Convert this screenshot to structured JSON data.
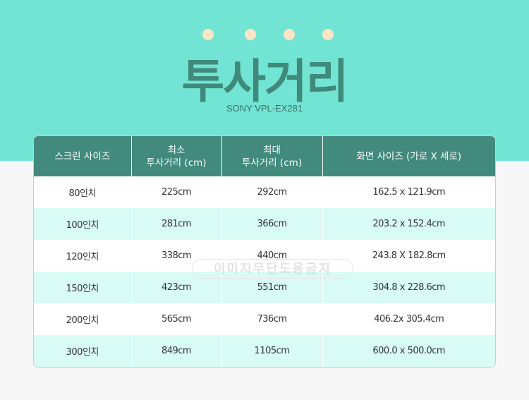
{
  "header": {
    "title": "투사거리",
    "subtitle": "SONY VPL-EX281"
  },
  "colors": {
    "top_bg": "#72e4d4",
    "header_bg": "#418a7d",
    "alt_row": "#d8fcf5",
    "dots": "#fde4c4"
  },
  "table": {
    "columns": [
      "스크린 사이즈",
      "최소\n투사거리 (cm)",
      "최대\n투사거리 (cm)",
      "화면 사이즈 (가로 X 세로)"
    ],
    "rows": [
      [
        "80인치",
        "225cm",
        "292cm",
        "162.5 x 121.9cm"
      ],
      [
        "100인치",
        "281cm",
        "366cm",
        "203.2 x 152.4cm"
      ],
      [
        "120인치",
        "338cm",
        "440cm",
        "243.8 X 182.8cm"
      ],
      [
        "150인치",
        "423cm",
        "551cm",
        "304.8 x 228.6cm"
      ],
      [
        "200인치",
        "565cm",
        "736cm",
        "406.2x 305.4cm"
      ],
      [
        "300인치",
        "849cm",
        "1105cm",
        "600.0 x 500.0cm"
      ]
    ]
  },
  "watermark": "이미지무단도용금지"
}
